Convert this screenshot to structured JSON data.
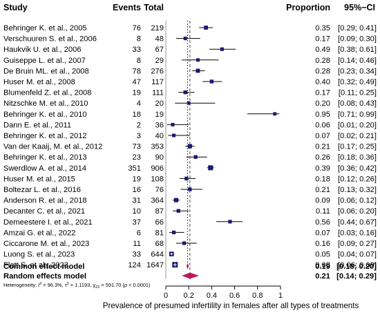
{
  "chart_data": {
    "type": "forest",
    "headers": {
      "study": "Study",
      "events": "Events",
      "total": "Total",
      "proportion": "Proportion",
      "ci": "95%−CI"
    },
    "studies": [
      {
        "study": "Behringer K. et al., 2005",
        "events": "76",
        "total": "219",
        "est": 0.35,
        "lo": 0.29,
        "hi": 0.41,
        "prop": "0.35",
        "ci": "[0.29; 0.41]"
      },
      {
        "study": "Verschuuren S. et al., 2006",
        "events": "8",
        "total": "48",
        "est": 0.17,
        "lo": 0.09,
        "hi": 0.3,
        "prop": "0.17",
        "ci": "[0.09; 0.30]"
      },
      {
        "study": "Haukvik U. et al., 2006",
        "events": "33",
        "total": "67",
        "est": 0.49,
        "lo": 0.38,
        "hi": 0.61,
        "prop": "0.49",
        "ci": "[0.38; 0.61]"
      },
      {
        "study": "Guiseppe L. et al., 2007",
        "events": "8",
        "total": "29",
        "est": 0.28,
        "lo": 0.14,
        "hi": 0.46,
        "prop": "0.28",
        "ci": "[0.14; 0.46]"
      },
      {
        "study": "De Bruin ML. et al., 2008",
        "events": "78",
        "total": "276",
        "est": 0.28,
        "lo": 0.23,
        "hi": 0.34,
        "prop": "0.28",
        "ci": "[0.23; 0.34]"
      },
      {
        "study": "Huser M. et al., 2008",
        "events": "47",
        "total": "117",
        "est": 0.4,
        "lo": 0.32,
        "hi": 0.49,
        "prop": "0.40",
        "ci": "[0.32; 0.49]"
      },
      {
        "study": "Blumenfeld Z. et al., 2008",
        "events": "19",
        "total": "111",
        "est": 0.17,
        "lo": 0.11,
        "hi": 0.25,
        "prop": "0.17",
        "ci": "[0.11; 0.25]"
      },
      {
        "study": "Nitzschke M. et al., 2010",
        "events": "4",
        "total": "20",
        "est": 0.2,
        "lo": 0.08,
        "hi": 0.43,
        "prop": "0.20",
        "ci": "[0.08; 0.43]"
      },
      {
        "study": "Behringer K. et al., 2010",
        "events": "18",
        "total": "19",
        "est": 0.95,
        "lo": 0.71,
        "hi": 0.99,
        "prop": "0.95",
        "ci": "[0.71; 0.99]"
      },
      {
        "study": "Dann E. et al., 2011",
        "events": "2",
        "total": "36",
        "est": 0.06,
        "lo": 0.01,
        "hi": 0.2,
        "prop": "0.06",
        "ci": "[0.01; 0.20]"
      },
      {
        "study": "Behringer K. et al., 2012",
        "events": "3",
        "total": "40",
        "est": 0.07,
        "lo": 0.02,
        "hi": 0.21,
        "prop": "0.07",
        "ci": "[0.02; 0.21]"
      },
      {
        "study": "Van der Kaaij, M. et al., 2012",
        "events": "73",
        "total": "353",
        "est": 0.21,
        "lo": 0.17,
        "hi": 0.25,
        "prop": "0.21",
        "ci": "[0.17; 0.25]"
      },
      {
        "study": "Behringer K. et al., 2013",
        "events": "23",
        "total": "90",
        "est": 0.26,
        "lo": 0.18,
        "hi": 0.36,
        "prop": "0.26",
        "ci": "[0.18; 0.36]"
      },
      {
        "study": "Swerdlow A. et al., 2014",
        "events": "351",
        "total": "906",
        "est": 0.39,
        "lo": 0.36,
        "hi": 0.42,
        "prop": "0.39",
        "ci": "[0.36; 0.42]"
      },
      {
        "study": "Huser M. et al., 2015",
        "events": "19",
        "total": "108",
        "est": 0.18,
        "lo": 0.12,
        "hi": 0.26,
        "prop": "0.18",
        "ci": "[0.12; 0.26]"
      },
      {
        "study": "Boltezar L. et al., 2016",
        "events": "16",
        "total": "76",
        "est": 0.21,
        "lo": 0.13,
        "hi": 0.32,
        "prop": "0.21",
        "ci": "[0.13; 0.32]"
      },
      {
        "study": "Anderson R. et al., 2018",
        "events": "31",
        "total": "364",
        "est": 0.09,
        "lo": 0.06,
        "hi": 0.12,
        "prop": "0.09",
        "ci": "[0.06; 0.12]"
      },
      {
        "study": "Decanter C. et al., 2021",
        "events": "10",
        "total": "87",
        "est": 0.11,
        "lo": 0.06,
        "hi": 0.2,
        "prop": "0.11",
        "ci": "[0.06; 0.20]"
      },
      {
        "study": "Demeestere I. et al., 2021",
        "events": "37",
        "total": "66",
        "est": 0.56,
        "lo": 0.44,
        "hi": 0.67,
        "prop": "0.56",
        "ci": "[0.44; 0.67]"
      },
      {
        "study": "Amzai G. et al., 2022",
        "events": "6",
        "total": "81",
        "est": 0.07,
        "lo": 0.03,
        "hi": 0.16,
        "prop": "0.07",
        "ci": "[0.03; 0.16]"
      },
      {
        "study": "Ciccarone M. et al., 2023",
        "events": "11",
        "total": "68",
        "est": 0.16,
        "lo": 0.09,
        "hi": 0.27,
        "prop": "0.16",
        "ci": "[0.09; 0.27]"
      },
      {
        "study": "Luong S. et al., 2023",
        "events": "33",
        "total": "644",
        "est": 0.05,
        "lo": 0.04,
        "hi": 0.07,
        "prop": "0.05",
        "ci": "[0.04; 0.07]"
      },
      {
        "study": "Flatt S. et al., 2023",
        "events": "124",
        "total": "1647",
        "est": 0.08,
        "lo": 0.06,
        "hi": 0.09,
        "prop": "0.08",
        "ci": "[0.06; 0.09]"
      }
    ],
    "common": {
      "label": "Common effect model",
      "est": 0.19,
      "lo": 0.18,
      "hi": 0.2,
      "prop": "0.19",
      "ci": "[0.18; 0.20]"
    },
    "random": {
      "label": "Random effects model",
      "est": 0.21,
      "lo": 0.14,
      "hi": 0.29,
      "prop": "0.21",
      "ci": "[0.14; 0.29]"
    },
    "heterogeneity": {
      "prefix": "Heterogeneity: ",
      "i2": "I",
      "i2_value": " = 96.3%, ",
      "tau2": "τ",
      "tau2_value": " = 1.1193, ",
      "chi2": "χ",
      "chi2_sub": "22",
      "chi2_value": " = 591.70 (",
      "p": "p",
      "p_value": " < 0.0001)"
    },
    "x_ticks": [
      "0",
      "0.2",
      "0.4",
      "0.6",
      "0.8",
      "1"
    ],
    "xlim": [
      0,
      1
    ],
    "xlabel": "Prevalence of presumed infertility in females after all types of treatments",
    "colors": {
      "square": "#1a1a6e",
      "diamond": "#c2185b",
      "dashed": "#444444"
    }
  }
}
